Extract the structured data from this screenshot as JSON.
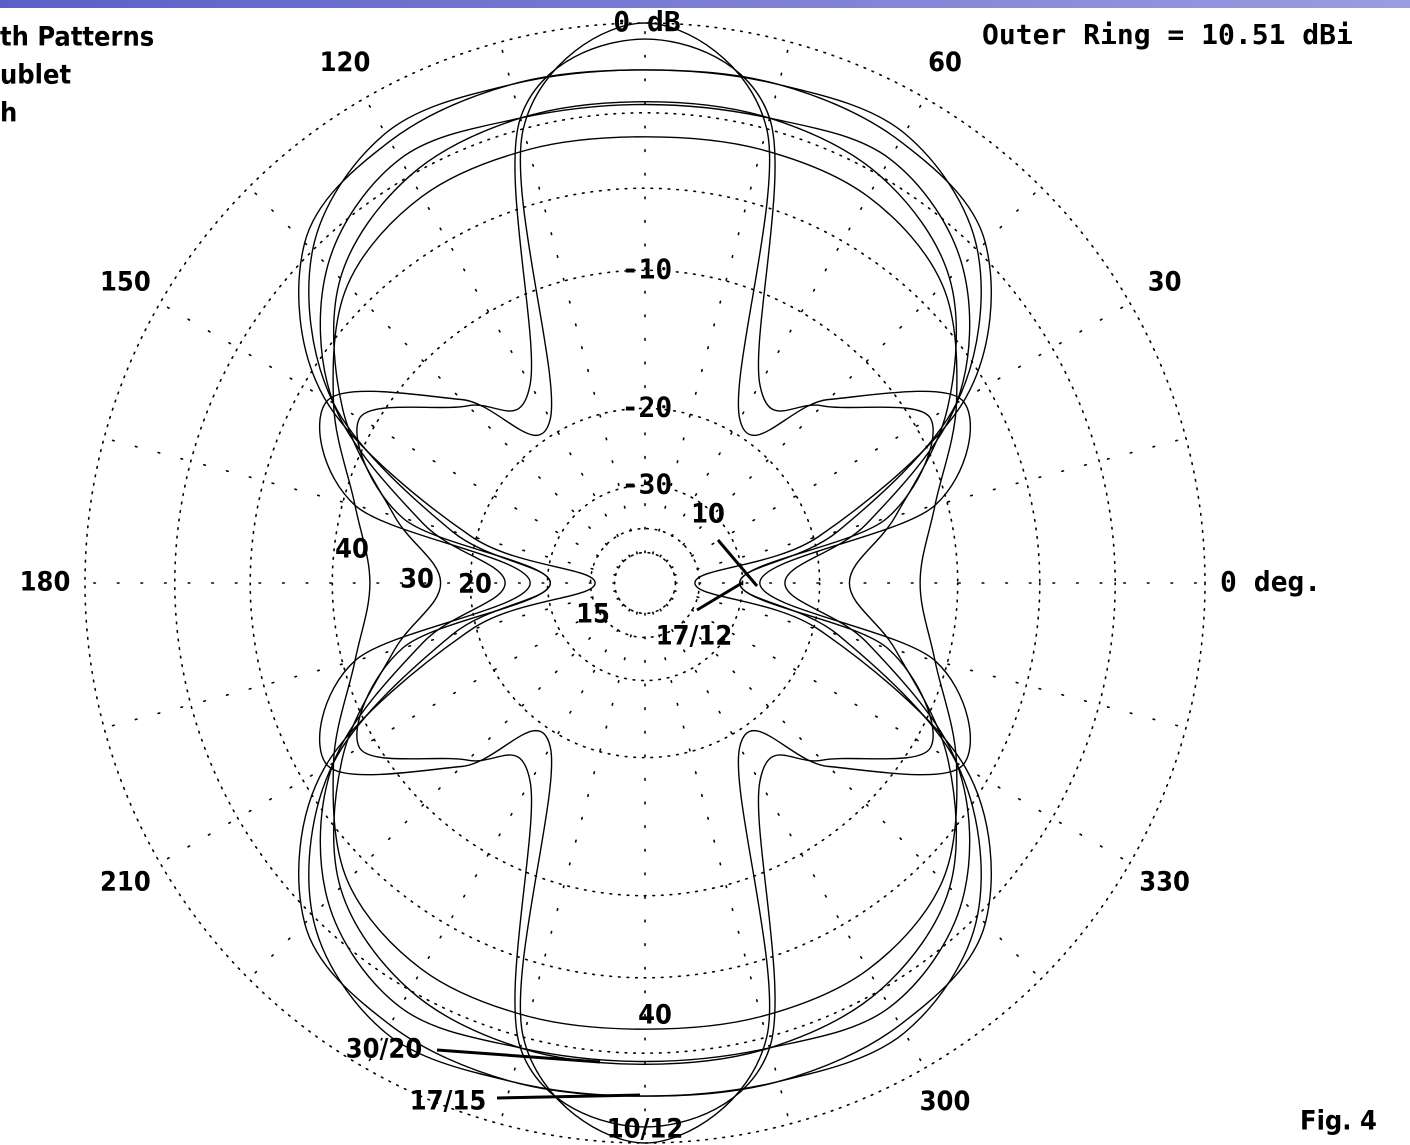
{
  "chart_data": {
    "type": "polar",
    "title_lines": [
      "th Patterns",
      "ublet",
      "h"
    ],
    "subtitle": "Outer Ring = 10.51 dBi",
    "figure_label": "Fig. 4",
    "radial_scale": "arrl-log",
    "rlim": [
      -50,
      0
    ],
    "rticks": [
      {
        "value": 0,
        "label": "0 dB"
      },
      -10,
      -20,
      -30
    ],
    "minor_rings": [
      -3,
      -6,
      -40,
      -50
    ],
    "angle_ticks": [
      {
        "value": 0,
        "label": "0 deg."
      },
      30,
      60,
      120,
      150,
      180,
      210,
      300,
      330
    ],
    "angles": [
      0,
      15,
      30,
      45,
      60,
      75,
      90,
      105,
      120,
      135,
      150,
      165,
      180,
      195,
      210,
      225,
      240,
      255,
      270,
      285,
      300,
      315,
      330,
      345
    ],
    "color": "#000000",
    "series": [
      {
        "values": [
          -12.2,
          -10.7,
          -7.6,
          -4.9,
          -3.9,
          -3.8,
          -3.9,
          -3.8,
          -3.9,
          -4.9,
          -7.6,
          -10.7,
          -12.2,
          -10.7,
          -7.6,
          -4.9,
          -3.9,
          -3.8,
          -3.9,
          -3.8,
          -3.9,
          -4.9,
          -7.6,
          -10.7
        ]
      },
      {
        "values": [
          -17.3,
          -13.2,
          -8.1,
          -4.5,
          -3.0,
          -2.6,
          -2.6,
          -2.6,
          -3.0,
          -4.5,
          -8.1,
          -13.2,
          -17.3,
          -13.2,
          -8.1,
          -4.5,
          -3.0,
          -2.6,
          -2.6,
          -2.6,
          -3.0,
          -4.5,
          -8.1,
          -13.2
        ]
      },
      {
        "values": [
          -23.8,
          -15.3,
          -7.6,
          -3.8,
          -2.3,
          -2.6,
          -2.7,
          -2.6,
          -2.3,
          -3.8,
          -7.6,
          -15.3,
          -23.8,
          -15.3,
          -7.6,
          -3.8,
          -2.3,
          -2.6,
          -2.7,
          -2.6,
          -2.3,
          -3.8,
          -7.6,
          -15.3
        ]
      },
      {
        "values": [
          -30.5,
          -17.7,
          -7.6,
          -3.0,
          -1.3,
          -1.4,
          -1.5,
          -1.4,
          -1.3,
          -3.0,
          -7.6,
          -17.7,
          -30.5,
          -17.7,
          -7.6,
          -3.0,
          -1.3,
          -1.4,
          -1.5,
          -1.4,
          -1.3,
          -3.0,
          -7.6,
          -17.7
        ]
      },
      {
        "values": [
          -41.5,
          -19.5,
          -7.1,
          -2.6,
          -1.6,
          -1.4,
          -1.5,
          -1.4,
          -1.6,
          -2.6,
          -7.1,
          -19.5,
          -41.5,
          -19.5,
          -7.1,
          -2.6,
          -1.6,
          -1.4,
          -1.5,
          -1.4,
          -1.6,
          -2.6,
          -7.1,
          -19.5
        ]
      },
      {
        "values": [
          -30.5,
          -13.8,
          -9.1,
          -13.8,
          -15.3,
          -2.6,
          -0.5,
          -2.6,
          -15.3,
          -13.8,
          -9.1,
          -13.8,
          -30.5,
          -13.8,
          -9.1,
          -13.8,
          -15.3,
          -2.6,
          -0.5,
          -2.6,
          -15.3,
          -13.8,
          -9.1,
          -13.8
        ]
      },
      {
        "values": [
          -27.2,
          -10.7,
          -7.3,
          -13.2,
          -18.6,
          -3.0,
          0,
          -3.0,
          -18.6,
          -13.2,
          -7.3,
          -10.7,
          -27.2,
          -10.7,
          -7.3,
          -13.2,
          -18.6,
          -3.0,
          0,
          -3.0,
          -18.6,
          -13.2,
          -7.3,
          -10.7
        ]
      }
    ],
    "annotations": [
      "10",
      "40",
      "30",
      "20",
      "15",
      "17/12",
      "40",
      "30/20",
      "17/15",
      "10/12"
    ]
  }
}
